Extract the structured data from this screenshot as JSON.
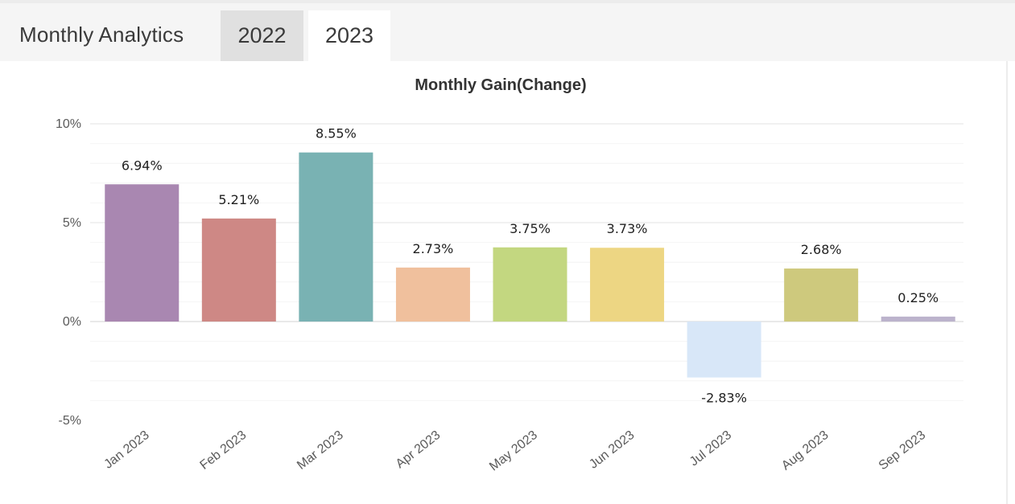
{
  "header": {
    "title": "Monthly Analytics",
    "tabs": [
      {
        "label": "2022",
        "active": false
      },
      {
        "label": "2023",
        "active": true
      }
    ]
  },
  "colors": {
    "bars": [
      "#a987b1",
      "#ce8885",
      "#79b2b3",
      "#f0c09d",
      "#c3d780",
      "#edd683",
      "#d8e7f8",
      "#cec97d",
      "#bcb3cc"
    ]
  },
  "chart_data": {
    "type": "bar",
    "title": "Monthly Gain(Change)",
    "xlabel": "",
    "ylabel": "",
    "categories": [
      "Jan 2023",
      "Feb 2023",
      "Mar 2023",
      "Apr 2023",
      "May 2023",
      "Jun 2023",
      "Jul 2023",
      "Aug 2023",
      "Sep 2023"
    ],
    "values": [
      6.94,
      5.21,
      8.55,
      2.73,
      3.75,
      3.73,
      -2.83,
      2.68,
      0.25
    ],
    "labels": [
      "6.94%",
      "5.21%",
      "8.55%",
      "2.73%",
      "3.75%",
      "3.73%",
      "-2.83%",
      "2.68%",
      "0.25%"
    ],
    "ylim": [
      -5,
      10
    ],
    "yticks": [
      {
        "value": 10,
        "label": "10%"
      },
      {
        "value": 5,
        "label": "5%"
      },
      {
        "value": 0,
        "label": "0%"
      },
      {
        "value": -5,
        "label": "-5%"
      }
    ],
    "grid": true,
    "legend": "none"
  }
}
